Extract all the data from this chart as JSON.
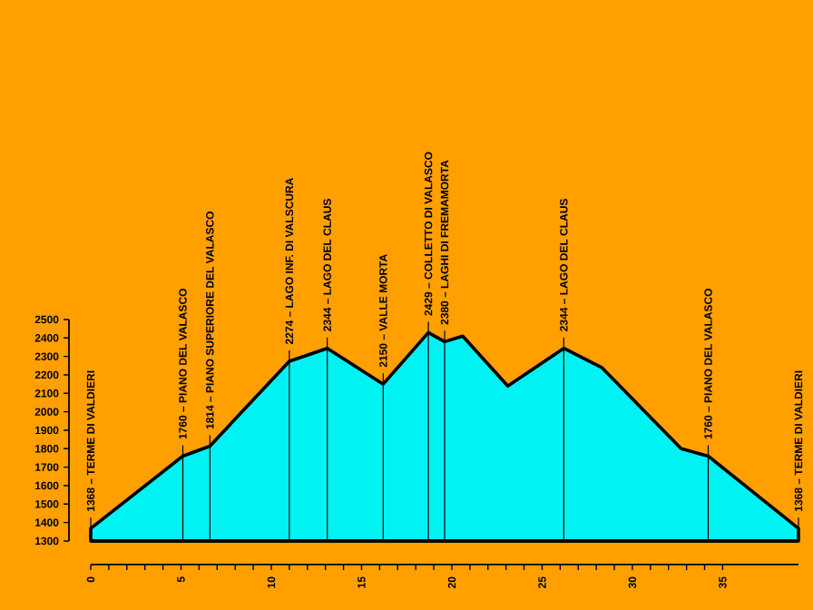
{
  "chart_data": {
    "type": "area",
    "x": [
      0,
      5.1,
      6.6,
      11.0,
      13.1,
      16.2,
      18.7,
      19.6,
      20.6,
      23.1,
      26.2,
      28.3,
      32.7,
      34.2,
      39.2
    ],
    "values": [
      1368,
      1760,
      1814,
      2274,
      2344,
      2150,
      2429,
      2380,
      2410,
      2140,
      2344,
      2240,
      1800,
      1760,
      1368
    ],
    "color": "#00f2f2",
    "xlim": [
      0,
      39.2
    ],
    "xticks": [
      0,
      5,
      10,
      15,
      20,
      25,
      30,
      35
    ],
    "ylim": [
      1300,
      2500
    ],
    "yticks": [
      1300,
      1400,
      1500,
      1600,
      1700,
      1800,
      1900,
      2000,
      2100,
      2200,
      2300,
      2400,
      2500
    ],
    "grid": false,
    "marker": "none",
    "line_style": "solid",
    "annotations": [
      {
        "text": "1368 – TERME DI VALDIERI",
        "x": 0,
        "y": 1368
      },
      {
        "text": "1760 – PIANO DEL VALASCO",
        "x": 5.1,
        "y": 1760
      },
      {
        "text": "1814 – PIANO SUPERIORE DEL VALASCO",
        "x": 6.6,
        "y": 1814
      },
      {
        "text": "2274 – LAGO INF. DI VALSCURA",
        "x": 11.0,
        "y": 2274
      },
      {
        "text": "2344 – LAGO DEL CLAUS",
        "x": 13.1,
        "y": 2344
      },
      {
        "text": "2150 – VALLE MORTA",
        "x": 16.2,
        "y": 2150
      },
      {
        "text": "2429 – COLLETTO DI VALASCO",
        "x": 18.7,
        "y": 2429
      },
      {
        "text": "2380 – LAGHI DI FREMAMORTA",
        "x": 19.6,
        "y": 2380
      },
      {
        "text": "2344 – LAGO DEL CLAUS",
        "x": 26.2,
        "y": 2344
      },
      {
        "text": "1760 – PIANO DEL VALASCO",
        "x": 34.2,
        "y": 1760
      },
      {
        "text": "1368 – TERME DI VALDIERI",
        "x": 39.2,
        "y": 1368
      }
    ]
  }
}
